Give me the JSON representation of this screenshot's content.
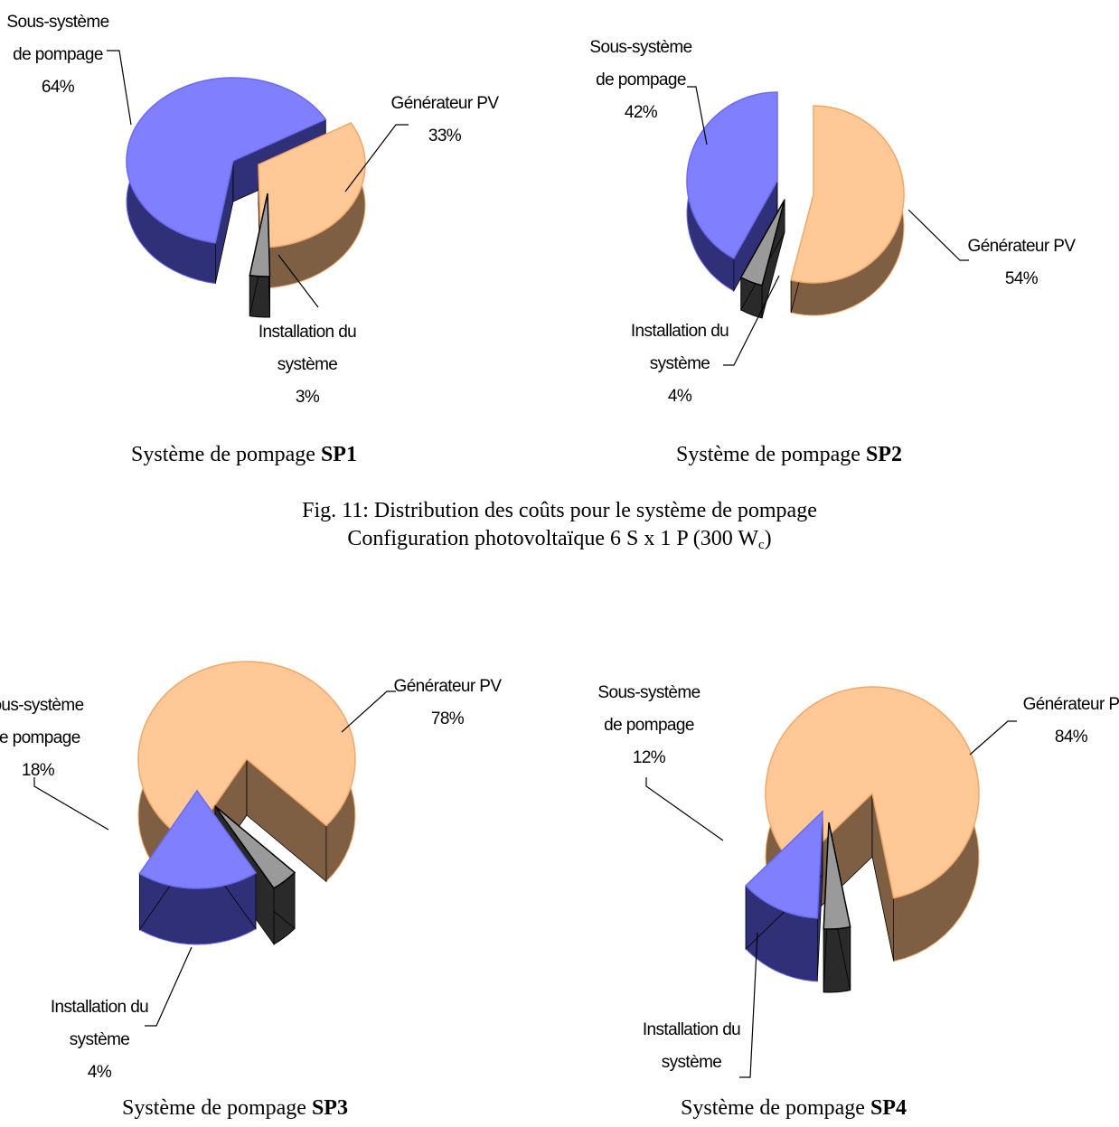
{
  "figure": {
    "caption_line1": "Fig. 11: Distribution des coûts pour le système de pompage",
    "caption_line2_prefix": "Configuration photovoltaïque 6 S x 1 P (300 W",
    "caption_line2_sub": "c",
    "caption_line2_suffix": ")"
  },
  "colors": {
    "generateur_top": "#ffc896",
    "generateur_side": "#7f5f44",
    "generateur_edge": "#f0a868",
    "pompage_top": "#8080ff",
    "pompage_side": "#303078",
    "pompage_edge": "#6a6af0",
    "installation_top": "#9a9a9a",
    "installation_side": "#2a2a2a"
  },
  "chart_data": [
    {
      "type": "pie",
      "title": "",
      "caption_prefix": "Système de pompage ",
      "caption_bold": "SP1",
      "slices": [
        {
          "key": "generateur",
          "value": 33,
          "label_lines": [
            "Générateur PV",
            "33%"
          ]
        },
        {
          "key": "installation",
          "value": 3,
          "label_lines": [
            "Installation du",
            "système",
            "3%"
          ]
        },
        {
          "key": "pompage",
          "value": 64,
          "label_lines": [
            "Sous-système",
            "de pompage",
            "64%"
          ]
        }
      ]
    },
    {
      "type": "pie",
      "title": "",
      "caption_prefix": "Système de pompage ",
      "caption_bold": "SP2",
      "slices": [
        {
          "key": "generateur",
          "value": 54,
          "label_lines": [
            "Générateur PV",
            "54%"
          ]
        },
        {
          "key": "installation",
          "value": 4,
          "label_lines": [
            "Installation du",
            "système",
            "4%"
          ]
        },
        {
          "key": "pompage",
          "value": 42,
          "label_lines": [
            "Sous-système",
            "de pompage",
            "42%"
          ]
        }
      ]
    },
    {
      "type": "pie",
      "title": "",
      "caption_prefix": "Système de pompage ",
      "caption_bold": "SP3",
      "slices": [
        {
          "key": "generateur",
          "value": 78,
          "label_lines": [
            "Générateur PV",
            "78%"
          ]
        },
        {
          "key": "installation",
          "value": 4,
          "label_lines": [
            "Installation du",
            "système",
            "4%"
          ]
        },
        {
          "key": "pompage",
          "value": 18,
          "label_lines": [
            "ous-système",
            "le pompage",
            "18%"
          ]
        }
      ]
    },
    {
      "type": "pie",
      "title": "",
      "caption_prefix": "Système de pompage ",
      "caption_bold": "SP4",
      "slices": [
        {
          "key": "generateur",
          "value": 84,
          "label_lines": [
            "Générateur P",
            "84%"
          ]
        },
        {
          "key": "installation",
          "value": 4,
          "label_lines": [
            "Installation du",
            "système"
          ]
        },
        {
          "key": "pompage",
          "value": 12,
          "label_lines": [
            "Sous-système",
            "de pompage",
            "12%"
          ]
        }
      ]
    }
  ]
}
